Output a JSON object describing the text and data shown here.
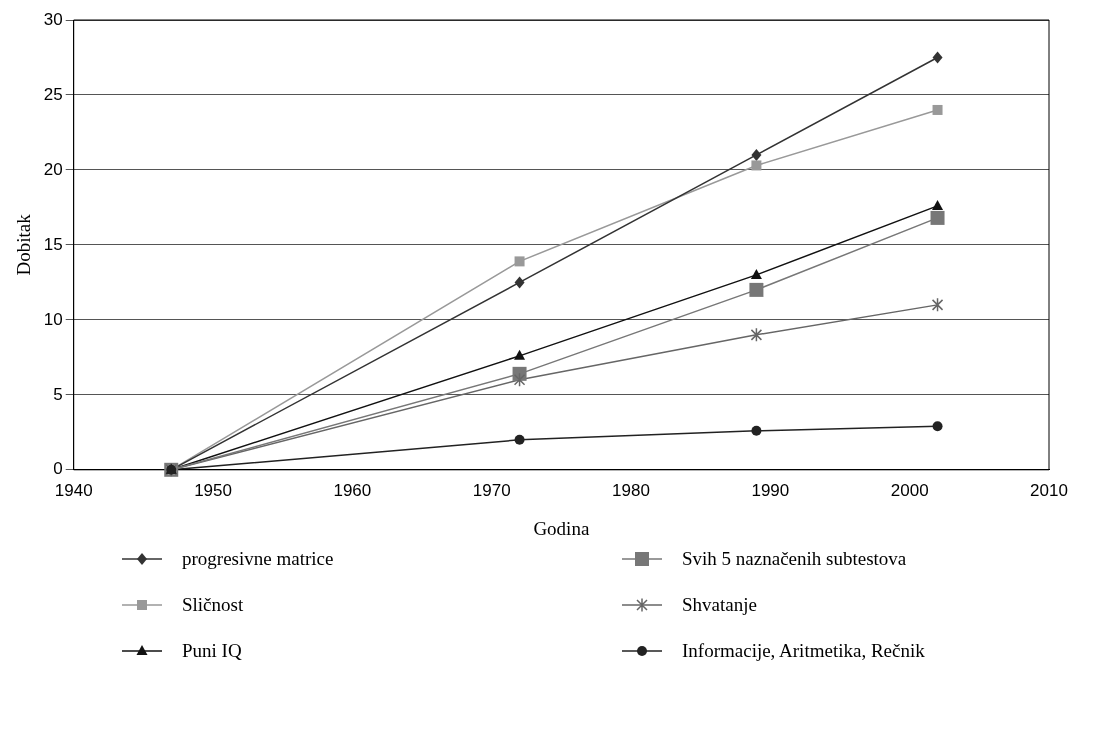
{
  "chart_data": {
    "type": "line",
    "xlabel": "Godina",
    "ylabel": "Dobitak",
    "x": [
      1947,
      1972,
      1989,
      2002
    ],
    "xlim": [
      1940,
      2010
    ],
    "xticks": [
      1940,
      1950,
      1960,
      1970,
      1980,
      1990,
      2000,
      2010
    ],
    "ylim": [
      0,
      30
    ],
    "yticks": [
      0,
      5,
      10,
      15,
      20,
      25,
      30
    ],
    "grid": "y",
    "legend": "bottom",
    "series": [
      {
        "name": "progresivne matrice",
        "color": "#333333",
        "marker": "diamond",
        "values": [
          0,
          12.5,
          21,
          27.5
        ]
      },
      {
        "name": "Svih 5 naznačenih subtestova",
        "color": "#777777",
        "marker": "square",
        "values": [
          0,
          6.4,
          12,
          16.8
        ]
      },
      {
        "name": "Sličnost",
        "color": "#999999",
        "marker": "square",
        "values": [
          0,
          13.9,
          20.3,
          24
        ]
      },
      {
        "name": "Shvatanje",
        "color": "#666666",
        "marker": "cross",
        "values": [
          0,
          6,
          9,
          11
        ]
      },
      {
        "name": "Puni IQ",
        "color": "#111111",
        "marker": "triangle",
        "values": [
          0,
          7.6,
          13,
          17.6
        ]
      },
      {
        "name": "Informacije, Aritmetika, Rečnik",
        "color": "#222222",
        "marker": "circle",
        "values": [
          0,
          2,
          2.6,
          2.9
        ]
      }
    ]
  }
}
